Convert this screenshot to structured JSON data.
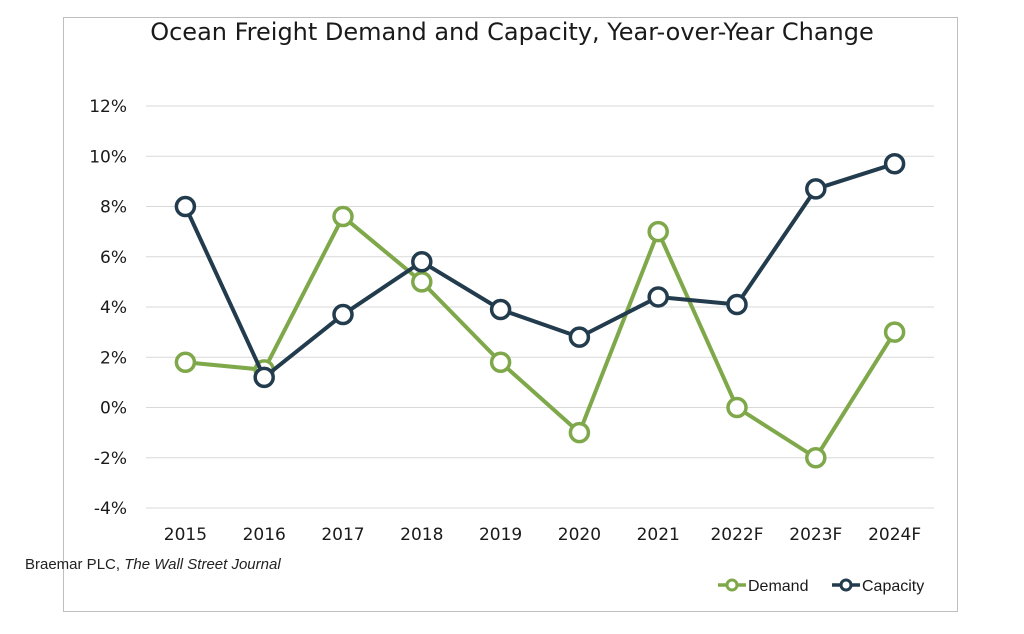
{
  "chart_data": {
    "type": "line",
    "title": "Ocean Freight Demand and Capacity, Year-over-Year Change",
    "xlabel": "",
    "ylabel": "",
    "categories": [
      "2015",
      "2016",
      "2017",
      "2018",
      "2019",
      "2020",
      "2021",
      "2022F",
      "2023F",
      "2024F"
    ],
    "series": [
      {
        "name": "Demand",
        "color": "#7fa84a",
        "values": [
          1.8,
          1.5,
          7.6,
          5.0,
          1.8,
          -1.0,
          7.0,
          0.0,
          -2.0,
          3.0
        ]
      },
      {
        "name": "Capacity",
        "color": "#223c4e",
        "values": [
          8.0,
          1.2,
          3.7,
          5.8,
          3.9,
          2.8,
          4.4,
          4.1,
          8.7,
          9.7
        ]
      }
    ],
    "ylim": [
      -4,
      12
    ],
    "yticks": [
      -4,
      -2,
      0,
      2,
      4,
      6,
      8,
      10,
      12
    ],
    "ytick_labels": [
      "-4%",
      "-2%",
      "0%",
      "2%",
      "4%",
      "6%",
      "8%",
      "10%",
      "12%"
    ],
    "grid": true,
    "legend_position": "bottom-right"
  },
  "source": {
    "prefix": "Braemar PLC, ",
    "journal": "The Wall Street Journal"
  }
}
